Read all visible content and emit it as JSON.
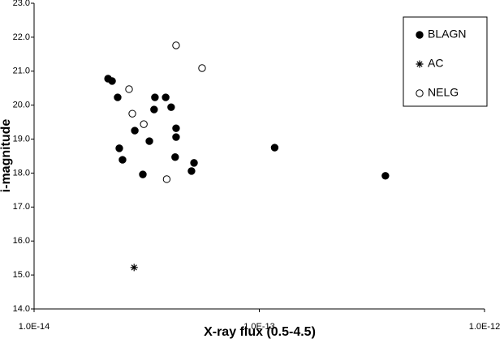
{
  "chart_data": {
    "type": "scatter",
    "x_label": "X-ray flux (0.5-4.5)",
    "y_label": "i-magnitude",
    "xlog": true,
    "xlim": [
      1e-14,
      1e-12
    ],
    "ylim": [
      14,
      23
    ],
    "xticks": [
      {
        "value": 1e-14,
        "label": "1.0E-14"
      },
      {
        "value": 1e-13,
        "label": "1.0E-13"
      },
      {
        "value": 1e-12,
        "label": "1.0E-12"
      }
    ],
    "yticks": [
      {
        "value": 14,
        "label": "14.0"
      },
      {
        "value": 15,
        "label": "15.0"
      },
      {
        "value": 16,
        "label": "16.0"
      },
      {
        "value": 17,
        "label": "17.0"
      },
      {
        "value": 18,
        "label": "18.0"
      },
      {
        "value": 19,
        "label": "19.0"
      },
      {
        "value": 20,
        "label": "20.0"
      },
      {
        "value": 21,
        "label": "21.0"
      },
      {
        "value": 22,
        "label": "22.0"
      },
      {
        "value": 23,
        "label": "23.0"
      }
    ],
    "legend": "top-right",
    "series": [
      {
        "name": "BLAGN",
        "color": "#000000",
        "marker": "filled-circle",
        "x": [
          2.13e-14,
          2.22e-14,
          2.35e-14,
          3.44e-14,
          3.84e-14,
          3.41e-14,
          4.06e-14,
          4.27e-14,
          4.27e-14,
          2.8e-14,
          3.25e-14,
          2.39e-14,
          2.47e-14,
          4.23e-14,
          5.13e-14,
          5e-14,
          3.04e-14,
          1.17e-13,
          3.63e-13
        ],
        "values": [
          20.78,
          20.71,
          20.23,
          20.23,
          20.23,
          19.87,
          19.94,
          19.32,
          19.06,
          19.25,
          18.94,
          18.73,
          18.39,
          18.47,
          18.3,
          18.06,
          17.96,
          18.75,
          17.92
        ]
      },
      {
        "name": "AC",
        "color": "#000000",
        "marker": "asterisk",
        "x": [
          2.78e-14
        ],
        "values": [
          15.22
        ]
      },
      {
        "name": "NELG",
        "color": "#000000",
        "marker": "open-circle",
        "x": [
          4.27e-14,
          5.57e-14,
          2.64e-14,
          2.73e-14,
          3.07e-14,
          3.88e-14
        ],
        "values": [
          21.76,
          21.09,
          20.47,
          19.75,
          19.44,
          17.82
        ]
      }
    ]
  }
}
